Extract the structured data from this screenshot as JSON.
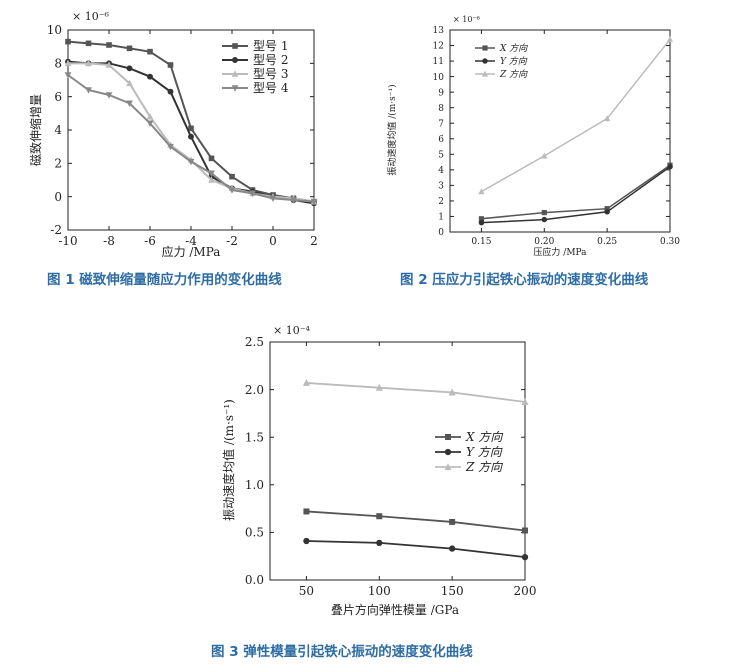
{
  "figures": [
    {
      "caption": "图 1 磁致伸缩量随应力作用的变化曲线",
      "chart_data": {
        "type": "line",
        "ylabel": "磁致伸缩增量",
        "xlabel": "应力 /MPa",
        "y_multiplier": "× 10⁻⁶",
        "xlim": [
          -10,
          2
        ],
        "ylim": [
          -2,
          10
        ],
        "xticks": [
          -10,
          -8,
          -6,
          -4,
          -2,
          0,
          2
        ],
        "yticks": [
          -2,
          0,
          2,
          4,
          6,
          8,
          10
        ],
        "legend_position": "top-right",
        "series": [
          {
            "name": "型号 1",
            "marker": "square",
            "color": "#555555",
            "x": [
              -10,
              -9,
              -8,
              -7,
              -6,
              -5,
              -4,
              -3,
              -2,
              -1,
              0,
              1,
              2
            ],
            "y": [
              9.3,
              9.2,
              9.1,
              8.9,
              8.7,
              7.9,
              4.1,
              2.3,
              1.2,
              0.4,
              0.1,
              -0.1,
              -0.3
            ]
          },
          {
            "name": "型号 2",
            "marker": "circle",
            "color": "#333333",
            "x": [
              -10,
              -9,
              -8,
              -7,
              -6,
              -5,
              -4,
              -3,
              -2,
              -1,
              0,
              1,
              2
            ],
            "y": [
              8.1,
              8.0,
              8.0,
              7.7,
              7.2,
              6.3,
              3.6,
              1.2,
              0.5,
              0.3,
              0.0,
              -0.2,
              -0.4
            ]
          },
          {
            "name": "型号 3",
            "marker": "triangle-up",
            "color": "#bbbbbb",
            "x": [
              -10,
              -9,
              -8,
              -7,
              -6,
              -5,
              -4,
              -3,
              -2,
              -1,
              0,
              1,
              2
            ],
            "y": [
              8.0,
              8.0,
              7.9,
              6.8,
              4.8,
              3.1,
              2.2,
              1.0,
              0.5,
              0.2,
              0.0,
              -0.1,
              -0.3
            ]
          },
          {
            "name": "型号 4",
            "marker": "triangle-down",
            "color": "#888888",
            "x": [
              -10,
              -9,
              -8,
              -7,
              -6,
              -5,
              -4,
              -3,
              -2,
              -1,
              0,
              1,
              2
            ],
            "y": [
              7.3,
              6.4,
              6.1,
              5.6,
              4.4,
              3.0,
              2.1,
              1.4,
              0.4,
              0.2,
              -0.1,
              -0.2,
              -0.3
            ]
          }
        ]
      }
    },
    {
      "caption": "图 2 压应力引起铁心振动的速度变化曲线",
      "chart_data": {
        "type": "line",
        "ylabel": "振动速度均值 /(m·s⁻¹)",
        "xlabel": "压应力 /MPa",
        "y_multiplier": "× 10⁻⁶",
        "xlim": [
          0.125,
          0.3
        ],
        "ylim": [
          0,
          13
        ],
        "xticks": [
          0.15,
          0.2,
          0.25,
          0.3
        ],
        "xtick_labels": [
          "0.15",
          "0.20",
          "0.25",
          "0.30"
        ],
        "yticks": [
          0,
          1,
          2,
          3,
          4,
          5,
          6,
          7,
          8,
          9,
          10,
          11,
          12,
          13
        ],
        "legend_position": "top-left",
        "series": [
          {
            "name": "X 方向",
            "marker": "square",
            "color": "#555555",
            "x": [
              0.15,
              0.2,
              0.25,
              0.3
            ],
            "y": [
              0.85,
              1.25,
              1.5,
              4.3
            ]
          },
          {
            "name": "Y 方向",
            "marker": "circle",
            "color": "#333333",
            "x": [
              0.15,
              0.2,
              0.25,
              0.3
            ],
            "y": [
              0.6,
              0.8,
              1.3,
              4.2
            ]
          },
          {
            "name": "Z 方向",
            "marker": "triangle-up",
            "color": "#bbbbbb",
            "x": [
              0.15,
              0.2,
              0.25,
              0.3
            ],
            "y": [
              2.6,
              4.9,
              7.3,
              12.4
            ]
          }
        ]
      }
    },
    {
      "caption": "图 3 弹性模量引起铁心振动的速度变化曲线",
      "chart_data": {
        "type": "line",
        "ylabel": "振动速度均值 /(m·s⁻¹)",
        "xlabel": "叠片方向弹性模量 /GPa",
        "y_multiplier": "× 10⁻⁴",
        "xlim": [
          25,
          200
        ],
        "ylim": [
          0,
          2.5
        ],
        "xticks": [
          50,
          100,
          150,
          200
        ],
        "yticks": [
          0,
          0.5,
          1.0,
          1.5,
          2.0,
          2.5
        ],
        "ytick_labels": [
          "0.0",
          "0.5",
          "1.0",
          "1.5",
          "2.0",
          "2.5"
        ],
        "legend_position": "center-right",
        "series": [
          {
            "name": "X 方向",
            "marker": "square",
            "color": "#555555",
            "x": [
              50,
              100,
              150,
              200
            ],
            "y": [
              0.72,
              0.67,
              0.61,
              0.52
            ]
          },
          {
            "name": "Y 方向",
            "marker": "circle",
            "color": "#333333",
            "x": [
              50,
              100,
              150,
              200
            ],
            "y": [
              0.41,
              0.39,
              0.33,
              0.24
            ]
          },
          {
            "name": "Z 方向",
            "marker": "triangle-up",
            "color": "#bbbbbb",
            "x": [
              50,
              100,
              150,
              200
            ],
            "y": [
              2.07,
              2.02,
              1.97,
              1.87
            ]
          }
        ]
      }
    }
  ]
}
